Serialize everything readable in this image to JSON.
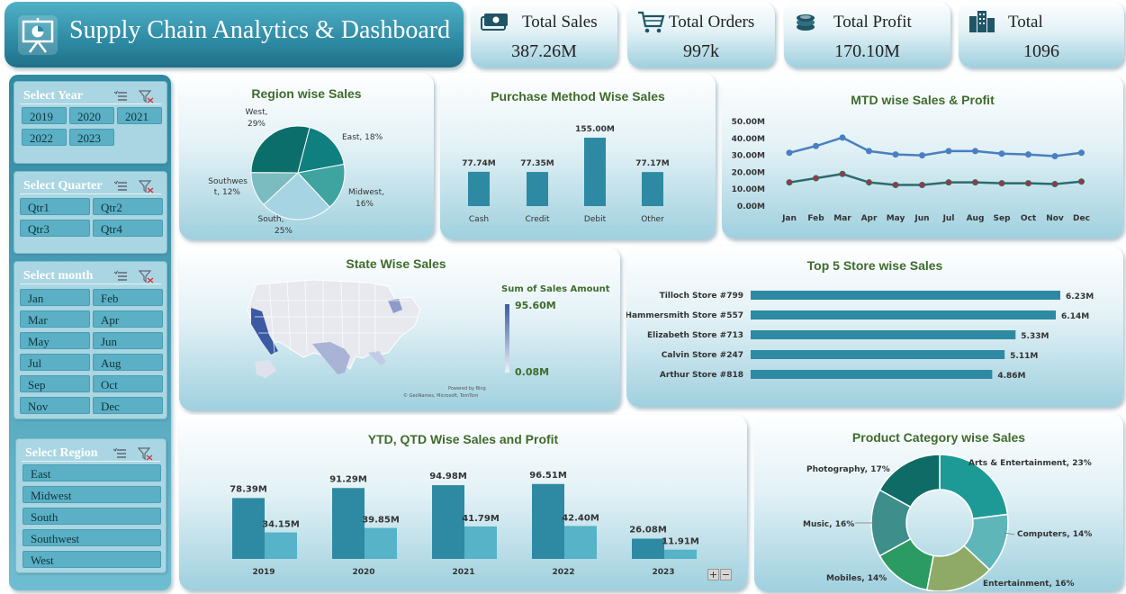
{
  "header": {
    "title": "Supply Chain Analytics & Dashboard",
    "icon": "presentation-chart-icon"
  },
  "kpis": [
    {
      "label": "Total Sales",
      "value": "387.26M",
      "icon": "cash-icon"
    },
    {
      "label": "Total Orders",
      "value": "997k",
      "icon": "cart-icon"
    },
    {
      "label": "Total Profit",
      "value": "170.10M",
      "icon": "coins-icon"
    },
    {
      "label": "Total",
      "value": "1096",
      "icon": "building-icon"
    }
  ],
  "slicers": {
    "year": {
      "title": "Select Year",
      "items": [
        "2019",
        "2020",
        "2021",
        "2022",
        "2023"
      ]
    },
    "quarter": {
      "title": "Select Quarter",
      "items": [
        "Qtr1",
        "Qtr2",
        "Qtr3",
        "Qtr4"
      ]
    },
    "month": {
      "title": "Select month",
      "items": [
        "Jan",
        "Feb",
        "Mar",
        "Apr",
        "May",
        "Jun",
        "Jul",
        "Aug",
        "Sep",
        "Oct",
        "Nov",
        "Dec"
      ]
    },
    "region": {
      "title": "Select Region",
      "items": [
        "East",
        "Midwest",
        "South",
        "Southwest",
        "West"
      ]
    }
  },
  "map": {
    "title": "State Wise Sales",
    "legend_title": "Sum of Sales Amount",
    "legend_max": "95.60M",
    "legend_min": "0.08M",
    "credit1": "Powered by Bing",
    "credit2": "© GeoNames, Microsoft, TomTom"
  },
  "colors": {
    "accent": "#2e8aa3",
    "accent_light": "#56b3c8",
    "title_green": "#3f6b2c",
    "line_blue": "#4a7fc1",
    "line_dark": "#2b6b6b"
  },
  "chart_data": [
    {
      "id": "region",
      "type": "pie",
      "title": "Region wise Sales",
      "categories": [
        "East",
        "Midwest",
        "South",
        "Southwest",
        "West"
      ],
      "values": [
        18,
        16,
        25,
        12,
        29
      ],
      "labels": [
        "East, 18%",
        "Midwest,",
        "16%",
        "South,",
        "25%",
        "Southwes",
        "t, 12%",
        "West,",
        "29%"
      ],
      "colors": [
        "#0f7f80",
        "#3fa3a0",
        "#a6d4e3",
        "#7bbcc0",
        "#0b6e6a"
      ]
    },
    {
      "id": "purchase",
      "type": "bar",
      "title": "Purchase Method Wise Sales",
      "categories": [
        "Cash",
        "Credit",
        "Debit",
        "Other"
      ],
      "values": [
        77.74,
        77.35,
        155.0,
        77.17
      ],
      "value_labels": [
        "77.74M",
        "77.35M",
        "155.00M",
        "77.17M"
      ]
    },
    {
      "id": "mtd",
      "type": "line",
      "title": "MTD wise Sales & Profit",
      "categories": [
        "Jan",
        "Feb",
        "Mar",
        "Apr",
        "May",
        "Jun",
        "Jul",
        "Aug",
        "Sep",
        "Oct",
        "Nov",
        "Dec"
      ],
      "ylim": [
        0,
        50
      ],
      "yticks": [
        "0.00M",
        "10.00M",
        "20.00M",
        "30.00M",
        "40.00M",
        "50.00M"
      ],
      "series": [
        {
          "values": [
            31.5,
            35.5,
            40.5,
            32.5,
            30.5,
            30.0,
            32.5,
            32.5,
            31.0,
            30.5,
            29.5,
            31.5
          ],
          "color": "#4a7fc1"
        },
        {
          "values": [
            14.0,
            16.5,
            19.0,
            14.0,
            12.5,
            12.5,
            14.0,
            14.0,
            13.5,
            13.5,
            13.0,
            14.5
          ],
          "color": "#2b6b6b"
        }
      ]
    },
    {
      "id": "top5",
      "type": "bar",
      "title": "Top 5 Store wise Sales",
      "categories": [
        "Tilloch Store #799",
        "Hammersmith Store #557",
        "Elizabeth Store #713",
        "Calvin Store #247",
        "Arthur Store #818"
      ],
      "values": [
        6.23,
        6.14,
        5.33,
        5.11,
        4.86
      ],
      "value_labels": [
        "6.23M",
        "6.14M",
        "5.33M",
        "5.11M",
        "4.86M"
      ]
    },
    {
      "id": "ytd",
      "type": "bar",
      "title": "YTD, QTD Wise Sales and Profit",
      "categories": [
        "2019",
        "2020",
        "2021",
        "2022",
        "2023"
      ],
      "series": [
        {
          "values": [
            78.39,
            91.29,
            94.98,
            96.51,
            26.08
          ],
          "labels": [
            "78.39M",
            "91.29M",
            "94.98M",
            "96.51M",
            "26.08M"
          ],
          "color": "#2e8aa3"
        },
        {
          "values": [
            34.15,
            39.85,
            41.79,
            42.4,
            11.91
          ],
          "labels": [
            "34.15M",
            "39.85M",
            "41.79M",
            "42.40M",
            "11.91M"
          ],
          "color": "#56b3c8"
        }
      ]
    },
    {
      "id": "category",
      "type": "pie",
      "title": "Product Category wise Sales",
      "categories": [
        "Arts & Entertainment",
        "Computers",
        "Entertainment",
        "Mobiles",
        "Music",
        "Photography"
      ],
      "values": [
        23,
        14,
        16,
        14,
        16,
        17
      ],
      "labels": [
        "Arts & Entertainment, 23%",
        "Computers, 14%",
        "Entertainment, 16%",
        "Mobiles, 14%",
        "Music, 16%",
        "Photography, 17%"
      ],
      "colors": [
        "#1d9a96",
        "#5fb6b8",
        "#8faa67",
        "#2c9a63",
        "#3e8e8c",
        "#0f6b66"
      ]
    }
  ],
  "controls": {
    "plus": "+",
    "minus": "−"
  }
}
